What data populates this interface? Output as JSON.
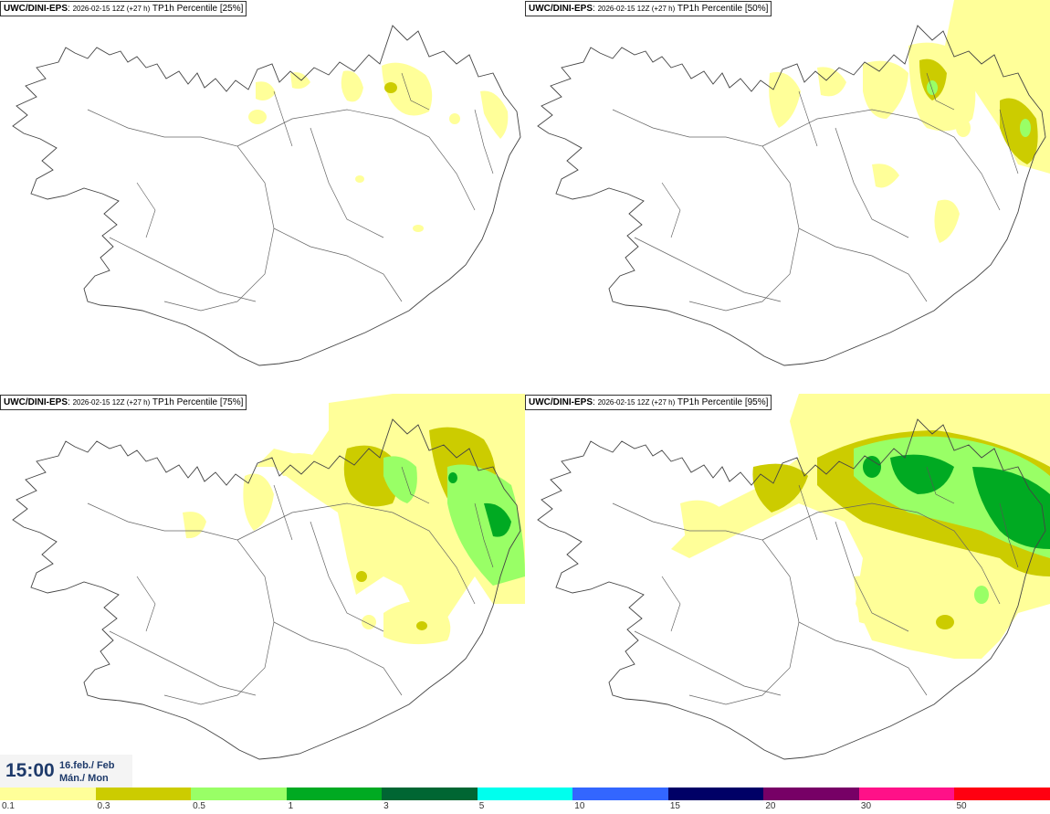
{
  "panels": [
    {
      "model": "UWC/DINI-EPS",
      "run": "2026-02-15 12Z (+27 h)",
      "field": "TP1h Percentile [25%]",
      "percentile": 25
    },
    {
      "model": "UWC/DINI-EPS",
      "run": "2026-02-15 12Z (+27 h)",
      "field": "TP1h Percentile [50%]",
      "percentile": 50
    },
    {
      "model": "UWC/DINI-EPS",
      "run": "2026-02-15 12Z (+27 h)",
      "field": "TP1h Percentile [75%]",
      "percentile": 75
    },
    {
      "model": "UWC/DINI-EPS",
      "run": "2026-02-15 12Z (+27 h)",
      "field": "TP1h Percentile [95%]",
      "percentile": 95
    }
  ],
  "valid_time": {
    "time": "15:00",
    "date": "16.feb./ Feb",
    "day": "Mán./ Mon"
  },
  "legend": {
    "ticks": [
      "0.1",
      "0.3",
      "0.5",
      "1",
      "3",
      "5",
      "10",
      "15",
      "20",
      "30",
      "50"
    ],
    "colors": [
      "#ffff99",
      "#cccc00",
      "#99ff66",
      "#00aa22",
      "#006633",
      "#00ffee",
      "#3366ff",
      "#000066",
      "#770066",
      "#ff1188",
      "#ff0011"
    ]
  },
  "colors": {
    "coast": "#444444",
    "text": "#1e3a6a"
  }
}
